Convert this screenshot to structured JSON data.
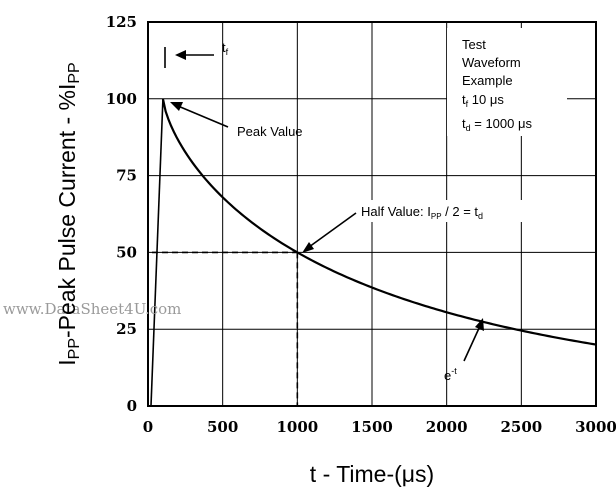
{
  "chart_data": {
    "type": "line",
    "title": "",
    "xlabel": "t - Time-(μs)",
    "ylabel_parts": {
      "pre": "I",
      "sub": "PP",
      "mid": "-Peak Pulse Current - %I",
      "sub2": "PP"
    },
    "xlim": [
      0,
      3000
    ],
    "ylim": [
      0,
      125
    ],
    "xticks": [
      0,
      500,
      1000,
      1500,
      2000,
      2500,
      3000
    ],
    "yticks": [
      0,
      25,
      50,
      75,
      100,
      125
    ],
    "grid": true,
    "tf_us": 10,
    "td_us": 1000,
    "series": [
      {
        "x": [
          20,
          100
        ],
        "y": [
          0,
          100
        ]
      },
      {
        "tau": 1000,
        "peak_x": 100,
        "peak_y": 100,
        "x_end": 3000,
        "decay_model": "y = 100 * 2^(-(x-100)/(1000-100))"
      }
    ],
    "half_value_guides": {
      "x": 1000,
      "y": 50
    },
    "annotations": {
      "tf": {
        "main": "t",
        "sub": "f"
      },
      "peak": "Peak Value",
      "half": {
        "pre": "Half Value: I",
        "sub": "PP",
        "mid": " / 2 = t",
        "sub2": "d"
      },
      "exp": {
        "main": "e",
        "sup": "-t"
      },
      "legend_box": {
        "line1": "Test",
        "line2": "Waveform",
        "line3": "Example",
        "line4": {
          "main": "t",
          "sub": "f",
          "rest": " 10 μs"
        },
        "line5": {
          "main": "t",
          "sub": "d",
          "rest": " = 1000 μs"
        }
      }
    }
  },
  "watermark": "www.DataSheet4U.com"
}
